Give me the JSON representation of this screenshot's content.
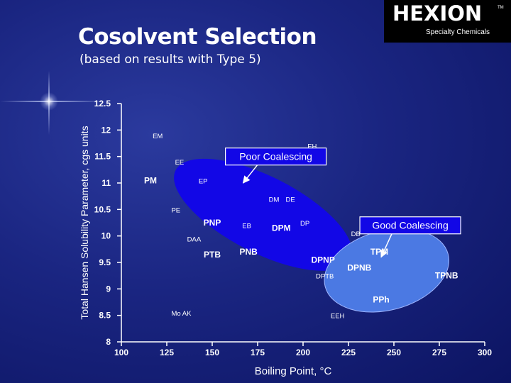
{
  "title": "Cosolvent Selection",
  "subtitle": "(based on results with Type 5)",
  "logo": {
    "name": "HEXION",
    "trademark": "TM",
    "tagline": "Specialty Chemicals"
  },
  "chart_data": {
    "type": "scatter",
    "xlabel": "Boiling Point, °C",
    "ylabel": "Total Hansen Solubility Parameter, cgs units",
    "xlim": [
      100,
      300
    ],
    "ylim": [
      8,
      12.5
    ],
    "xticks": [
      "100",
      "125",
      "150",
      "175",
      "200",
      "225",
      "250",
      "275",
      "300"
    ],
    "yticks": [
      "8",
      "8.5",
      "9",
      "9.5",
      "10",
      "10.5",
      "11",
      "11.5",
      "12",
      "12.5"
    ],
    "points": [
      {
        "label": "EM",
        "x": 120,
        "y": 11.9,
        "bold": false
      },
      {
        "label": "EE",
        "x": 132,
        "y": 11.4,
        "bold": false
      },
      {
        "label": "EH",
        "x": 205,
        "y": 11.7,
        "bold": false
      },
      {
        "label": "PM",
        "x": 116,
        "y": 11.05,
        "bold": true
      },
      {
        "label": "EP",
        "x": 145,
        "y": 11.05,
        "bold": false
      },
      {
        "label": "DM",
        "x": 184,
        "y": 10.7,
        "bold": false
      },
      {
        "label": "DE",
        "x": 193,
        "y": 10.7,
        "bold": false
      },
      {
        "label": "PE",
        "x": 130,
        "y": 10.5,
        "bold": false
      },
      {
        "label": "PNP",
        "x": 150,
        "y": 10.25,
        "bold": true
      },
      {
        "label": "EB",
        "x": 169,
        "y": 10.2,
        "bold": false
      },
      {
        "label": "DPM",
        "x": 188,
        "y": 10.15,
        "bold": true
      },
      {
        "label": "DP",
        "x": 201,
        "y": 10.25,
        "bold": false
      },
      {
        "label": "DB",
        "x": 229,
        "y": 10.05,
        "bold": false
      },
      {
        "label": "DAA",
        "x": 140,
        "y": 9.95,
        "bold": false
      },
      {
        "label": "PTB",
        "x": 150,
        "y": 9.65,
        "bold": true
      },
      {
        "label": "PNB",
        "x": 170,
        "y": 9.7,
        "bold": true
      },
      {
        "label": "DPNP",
        "x": 211,
        "y": 9.55,
        "bold": true
      },
      {
        "label": "TPM",
        "x": 242,
        "y": 9.7,
        "bold": true
      },
      {
        "label": "DPNB",
        "x": 231,
        "y": 9.4,
        "bold": true
      },
      {
        "label": "DPTB",
        "x": 212,
        "y": 9.25,
        "bold": false
      },
      {
        "label": "TPNB",
        "x": 279,
        "y": 9.25,
        "bold": true
      },
      {
        "label": "PPh",
        "x": 243,
        "y": 8.8,
        "bold": true
      },
      {
        "label": "Mo AK",
        "x": 133,
        "y": 8.55,
        "bold": false
      },
      {
        "label": "EEH",
        "x": 219,
        "y": 8.5,
        "bold": false
      }
    ],
    "regions": [
      {
        "name": "Poor Coalescing",
        "color": "#1207e6",
        "cx": 178,
        "cy": 10.4,
        "rx": 54,
        "ry": 0.72,
        "rotate_deg": 27
      },
      {
        "name": "Good Coalescing",
        "color": "#4b79e3",
        "cx": 246,
        "cy": 9.35,
        "rx": 35,
        "ry": 0.75,
        "rotate_deg": -15
      }
    ],
    "annotations": [
      {
        "text": "Poor Coalescing",
        "x": 185,
        "y": 11.5,
        "arrow_to": [
          167,
          11.0
        ]
      },
      {
        "text": "Good Coalescing",
        "x": 259,
        "y": 10.2,
        "arrow_to": [
          243,
          9.6
        ]
      }
    ],
    "grid": false,
    "legend": "none"
  }
}
